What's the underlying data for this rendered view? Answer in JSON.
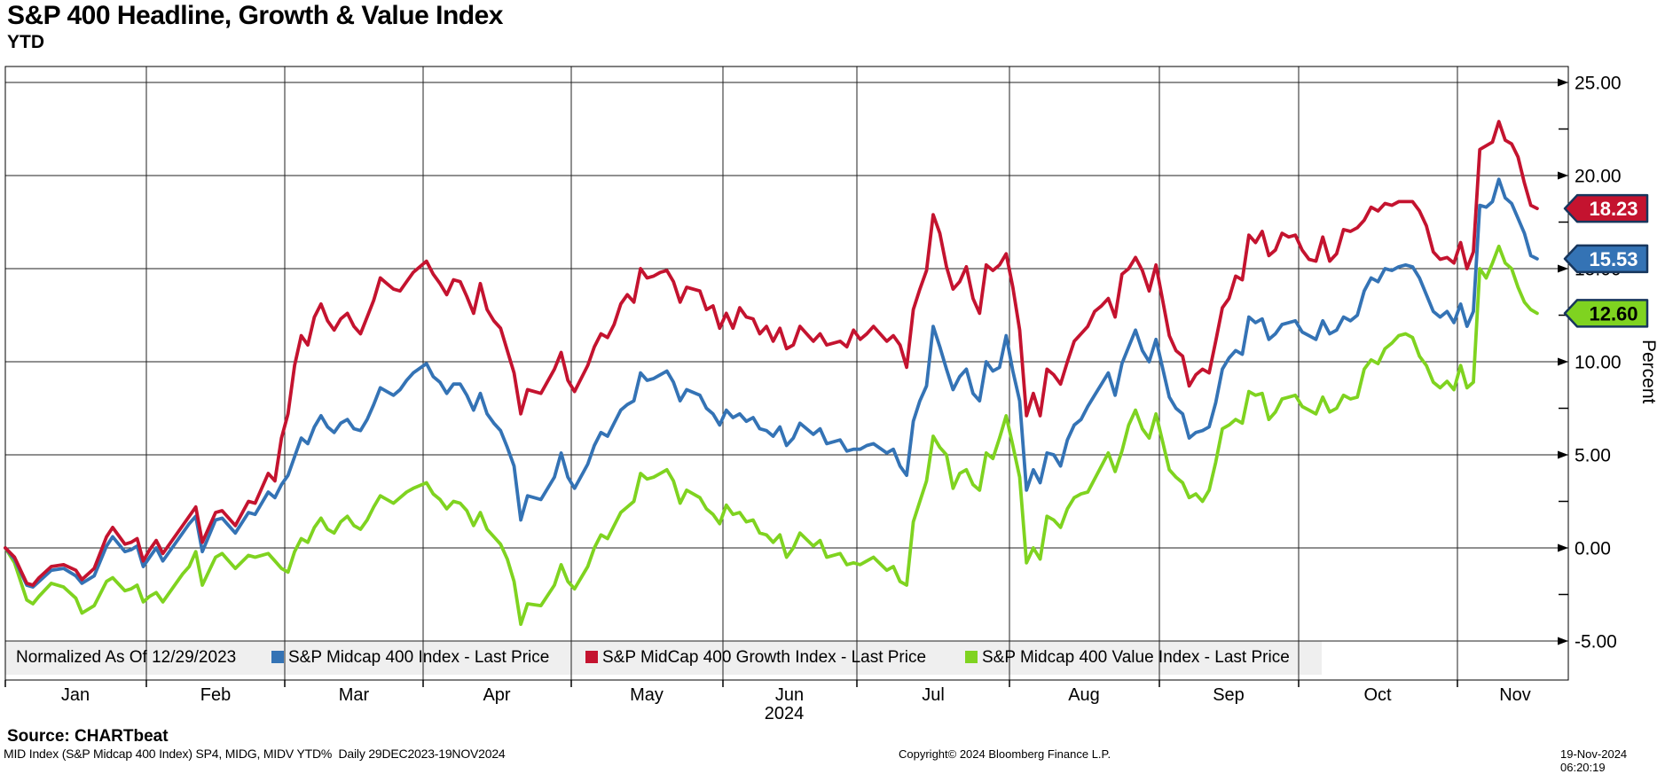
{
  "header": {
    "title": "S&P 400 Headline, Growth & Value Index",
    "subtitle": "YTD"
  },
  "footer": {
    "source": "Source: CHARTbeat",
    "meta": "MID Index (S&P Midcap 400 Index) SP4, MIDG, MIDV YTD%  Daily 29DEC2023-19NOV2024",
    "copyright": "Copyright© 2024 Bloomberg Finance L.P.",
    "timestamp": "19-Nov-2024 06:20:19"
  },
  "chart_data": {
    "type": "line",
    "title": "S&P 400 Headline, Growth & Value Index",
    "subtitle": "YTD",
    "legend_note": "Normalized As Of 12/29/2023",
    "legend_position": "bottom-inside",
    "grid": true,
    "x_axis": {
      "months": [
        "Jan",
        "Feb",
        "Mar",
        "Apr",
        "May",
        "Jun",
        "Jul",
        "Aug",
        "Sep",
        "Oct",
        "Nov"
      ],
      "year_label": "2024",
      "start_date": "2023-12-29",
      "end_date": "2024-11-19"
    },
    "y_axis": {
      "label": "Percent",
      "side": "right",
      "tick_labels": [
        "25.00",
        "20.00",
        "15.00",
        "10.00",
        "5.00",
        "0.00",
        "-5.00"
      ],
      "tick_values": [
        25,
        20,
        15,
        10,
        5,
        0,
        -5
      ],
      "ylim": [
        -7.2,
        25.9
      ]
    },
    "dates": [
      "2023-12-29",
      "2024-01-02",
      "2024-01-04",
      "2024-01-05",
      "2024-01-08",
      "2024-01-10",
      "2024-01-12",
      "2024-01-16",
      "2024-01-17",
      "2024-01-19",
      "2024-01-23",
      "2024-01-24",
      "2024-01-26",
      "2024-01-29",
      "2024-01-30",
      "2024-01-31",
      "2024-02-01",
      "2024-02-02",
      "2024-02-05",
      "2024-02-08",
      "2024-02-09",
      "2024-02-12",
      "2024-02-13",
      "2024-02-15",
      "2024-02-16",
      "2024-02-20",
      "2024-02-22",
      "2024-02-23",
      "2024-02-27",
      "2024-02-28",
      "2024-02-29",
      "2024-03-01",
      "2024-03-04",
      "2024-03-05",
      "2024-03-06",
      "2024-03-07",
      "2024-03-08",
      "2024-03-11",
      "2024-03-12",
      "2024-03-13",
      "2024-03-14",
      "2024-03-15",
      "2024-03-18",
      "2024-03-19",
      "2024-03-20",
      "2024-03-21",
      "2024-03-22",
      "2024-03-25",
      "2024-03-26",
      "2024-03-27",
      "2024-03-28",
      "2024-04-01",
      "2024-04-02",
      "2024-04-03",
      "2024-04-04",
      "2024-04-05",
      "2024-04-08",
      "2024-04-09",
      "2024-04-10",
      "2024-04-11",
      "2024-04-12",
      "2024-04-15",
      "2024-04-16",
      "2024-04-17",
      "2024-04-18",
      "2024-04-19",
      "2024-04-22",
      "2024-04-24",
      "2024-04-26",
      "2024-04-29",
      "2024-04-30",
      "2024-05-01",
      "2024-05-03",
      "2024-05-06",
      "2024-05-07",
      "2024-05-08",
      "2024-05-09",
      "2024-05-10",
      "2024-05-13",
      "2024-05-14",
      "2024-05-15",
      "2024-05-16",
      "2024-05-17",
      "2024-05-20",
      "2024-05-21",
      "2024-05-22",
      "2024-05-23",
      "2024-05-24",
      "2024-05-28",
      "2024-05-29",
      "2024-05-30",
      "2024-05-31",
      "2024-06-03",
      "2024-06-04",
      "2024-06-05",
      "2024-06-06",
      "2024-06-07",
      "2024-06-10",
      "2024-06-11",
      "2024-06-12",
      "2024-06-13",
      "2024-06-14",
      "2024-06-17",
      "2024-06-18",
      "2024-06-20",
      "2024-06-21",
      "2024-06-24",
      "2024-06-26",
      "2024-06-27",
      "2024-06-28",
      "2024-07-01",
      "2024-07-02",
      "2024-07-03",
      "2024-07-05",
      "2024-07-08",
      "2024-07-09",
      "2024-07-10",
      "2024-07-11",
      "2024-07-12",
      "2024-07-15",
      "2024-07-16",
      "2024-07-17",
      "2024-07-18",
      "2024-07-19",
      "2024-07-22",
      "2024-07-23",
      "2024-07-24",
      "2024-07-25",
      "2024-07-26",
      "2024-07-29",
      "2024-07-30",
      "2024-07-31",
      "2024-08-01",
      "2024-08-02",
      "2024-08-05",
      "2024-08-06",
      "2024-08-07",
      "2024-08-08",
      "2024-08-09",
      "2024-08-12",
      "2024-08-13",
      "2024-08-14",
      "2024-08-15",
      "2024-08-16",
      "2024-08-19",
      "2024-08-20",
      "2024-08-21",
      "2024-08-22",
      "2024-08-23",
      "2024-08-26",
      "2024-08-27",
      "2024-08-28",
      "2024-08-29",
      "2024-08-30",
      "2024-09-03",
      "2024-09-04",
      "2024-09-05",
      "2024-09-06",
      "2024-09-09",
      "2024-09-10",
      "2024-09-11",
      "2024-09-12",
      "2024-09-13",
      "2024-09-16",
      "2024-09-17",
      "2024-09-18",
      "2024-09-19",
      "2024-09-20",
      "2024-09-23",
      "2024-09-24",
      "2024-09-25",
      "2024-09-26",
      "2024-09-27",
      "2024-09-30",
      "2024-10-01",
      "2024-10-02",
      "2024-10-03",
      "2024-10-04",
      "2024-10-07",
      "2024-10-08",
      "2024-10-09",
      "2024-10-10",
      "2024-10-11",
      "2024-10-14",
      "2024-10-15",
      "2024-10-16",
      "2024-10-17",
      "2024-10-18",
      "2024-10-21",
      "2024-10-22",
      "2024-10-23",
      "2024-10-24",
      "2024-10-25",
      "2024-10-28",
      "2024-10-29",
      "2024-10-30",
      "2024-10-31",
      "2024-11-01",
      "2024-11-04",
      "2024-11-05",
      "2024-11-06",
      "2024-11-07",
      "2024-11-08",
      "2024-11-11",
      "2024-11-12",
      "2024-11-13",
      "2024-11-14",
      "2024-11-15",
      "2024-11-18",
      "2024-11-19"
    ],
    "series": [
      {
        "key": "headline",
        "name": "S&P Midcap 400 Index - Last Price",
        "color": "#3473b5",
        "last_price": "15.53",
        "last_value": 15.53,
        "badge_text_color": "#ffffff",
        "values": [
          0,
          -0.6,
          -2.0,
          -2.1,
          -1.8,
          -1.2,
          -1.1,
          -1.5,
          -1.9,
          -1.5,
          0.1,
          0.6,
          -0.2,
          -0.1,
          0.1,
          -1.0,
          -0.5,
          0.0,
          -0.7,
          0.8,
          1.3,
          1.7,
          -0.2,
          1.5,
          1.6,
          0.8,
          1.9,
          1.8,
          3.0,
          2.7,
          3.4,
          3.9,
          4.9,
          5.9,
          5.6,
          6.5,
          7.1,
          6.5,
          6.2,
          6.7,
          6.9,
          6.4,
          6.3,
          6.9,
          7.7,
          8.6,
          8.4,
          8.2,
          8.5,
          9.0,
          9.4,
          9.9,
          9.2,
          8.9,
          8.3,
          8.8,
          8.8,
          8.2,
          7.4,
          8.3,
          7.2,
          6.7,
          6.3,
          5.4,
          4.4,
          1.5,
          2.8,
          2.6,
          3.8,
          5.1,
          3.8,
          3.2,
          4.5,
          5.5,
          6.2,
          6.0,
          6.7,
          7.4,
          7.7,
          7.9,
          9.4,
          9.0,
          9.1,
          9.3,
          9.5,
          8.9,
          7.9,
          8.5,
          8.2,
          7.5,
          7.2,
          6.6,
          7.4,
          7.0,
          7.2,
          6.8,
          7.0,
          6.4,
          6.3,
          6.0,
          6.5,
          5.5,
          5.9,
          6.7,
          6.1,
          6.4,
          5.6,
          5.8,
          5.2,
          5.3,
          5.3,
          5.5,
          5.6,
          5.1,
          5.3,
          4.4,
          3.9,
          6.8,
          7.9,
          8.7,
          11.9,
          10.8,
          9.6,
          8.5,
          9.2,
          9.6,
          8.3,
          7.9,
          10.0,
          9.5,
          9.7,
          11.4,
          9.5,
          7.9,
          3.1,
          4.2,
          3.5,
          5.1,
          5.0,
          4.4,
          5.8,
          6.6,
          6.9,
          7.6,
          8.2,
          8.8,
          9.4,
          8.2,
          9.9,
          10.8,
          11.7,
          10.6,
          10.0,
          11.2,
          8.1,
          7.5,
          7.2,
          5.9,
          6.2,
          6.3,
          6.5,
          7.8,
          9.6,
          10.2,
          10.6,
          10.4,
          12.4,
          12.1,
          12.3,
          11.2,
          11.5,
          12.0,
          12.1,
          12.2,
          11.6,
          11.4,
          11.2,
          12.2,
          11.5,
          11.7,
          12.4,
          12.2,
          12.5,
          13.8,
          14.5,
          14.3,
          15.0,
          14.9,
          15.1,
          15.2,
          15.1,
          14.5,
          13.6,
          12.7,
          12.4,
          12.7,
          12.1,
          13.1,
          11.9,
          12.7,
          18.4,
          18.3,
          18.6,
          19.8,
          18.8,
          18.5,
          17.7,
          16.9,
          15.7,
          15.53
        ]
      },
      {
        "key": "growth",
        "name": "S&P MidCap 400 Growth Index - Last Price",
        "color": "#c4132f",
        "last_price": "18.23",
        "last_value": 18.23,
        "badge_text_color": "#ffffff",
        "values": [
          0,
          -0.5,
          -1.9,
          -2.0,
          -1.6,
          -1.0,
          -0.9,
          -1.2,
          -1.7,
          -1.1,
          0.6,
          1.1,
          0.2,
          0.3,
          0.5,
          -0.7,
          -0.1,
          0.4,
          -0.3,
          1.2,
          1.7,
          2.2,
          0.3,
          1.9,
          2.0,
          1.2,
          2.5,
          2.4,
          4.0,
          3.6,
          5.9,
          7.2,
          9.8,
          11.4,
          10.9,
          12.4,
          13.1,
          12.2,
          11.7,
          12.3,
          12.6,
          11.9,
          11.5,
          12.4,
          13.3,
          14.5,
          14.2,
          13.9,
          13.8,
          14.3,
          14.8,
          15.4,
          14.7,
          14.2,
          13.6,
          14.4,
          14.3,
          13.5,
          12.6,
          14.2,
          12.8,
          12.2,
          11.8,
          10.6,
          9.4,
          7.2,
          8.5,
          8.3,
          9.6,
          10.5,
          9.0,
          8.4,
          9.8,
          10.8,
          11.5,
          11.3,
          12.0,
          13.1,
          13.6,
          13.2,
          15.0,
          14.5,
          14.6,
          14.8,
          14.9,
          14.3,
          13.2,
          14.0,
          13.8,
          12.8,
          13.0,
          11.8,
          12.6,
          11.8,
          12.9,
          12.4,
          12.3,
          11.5,
          11.9,
          11.1,
          11.8,
          10.7,
          10.9,
          11.9,
          11.1,
          11.5,
          10.9,
          11.1,
          10.8,
          11.7,
          11.2,
          11.5,
          11.9,
          11.1,
          11.4,
          10.9,
          9.7,
          12.8,
          13.9,
          14.9,
          17.9,
          16.9,
          15.1,
          13.9,
          14.3,
          15.1,
          13.4,
          12.6,
          15.2,
          14.9,
          15.2,
          15.8,
          14.0,
          11.7,
          7.1,
          8.3,
          7.1,
          9.6,
          9.3,
          8.8,
          10.0,
          11.1,
          11.5,
          11.9,
          12.7,
          13.0,
          13.4,
          12.4,
          14.7,
          15.0,
          15.6,
          14.9,
          13.8,
          15.2,
          11.4,
          10.6,
          10.3,
          8.7,
          9.3,
          9.6,
          9.4,
          11.1,
          12.9,
          13.4,
          14.6,
          14.4,
          16.8,
          16.4,
          17.0,
          15.7,
          16.0,
          16.9,
          16.7,
          16.8,
          16.0,
          15.5,
          15.4,
          16.7,
          15.4,
          15.8,
          17.1,
          17.0,
          17.2,
          17.6,
          18.3,
          18.1,
          18.5,
          18.4,
          18.6,
          18.6,
          18.6,
          18.1,
          17.3,
          15.9,
          15.5,
          15.6,
          15.3,
          16.4,
          15.0,
          15.9,
          21.4,
          21.6,
          21.8,
          22.9,
          21.9,
          21.7,
          21.0,
          19.6,
          18.4,
          18.23
        ]
      },
      {
        "key": "value",
        "name": "S&P Midcap 400 Value Index - Last Price",
        "color": "#7fd320",
        "last_price": "12.60",
        "last_value": 12.6,
        "badge_text_color": "#000000",
        "values": [
          0,
          -0.8,
          -2.8,
          -3.0,
          -2.6,
          -1.9,
          -2.1,
          -2.7,
          -3.5,
          -3.1,
          -1.8,
          -1.6,
          -2.3,
          -2.2,
          -2.0,
          -2.9,
          -2.6,
          -2.4,
          -2.9,
          -1.4,
          -1.0,
          -0.2,
          -2.0,
          -0.5,
          -0.3,
          -1.1,
          -0.4,
          -0.5,
          -0.3,
          -0.7,
          -1.1,
          -1.3,
          -0.2,
          0.5,
          0.3,
          1.1,
          1.6,
          1.0,
          0.8,
          1.4,
          1.7,
          1.2,
          1.0,
          1.5,
          2.2,
          2.8,
          2.6,
          2.4,
          2.7,
          3.0,
          3.2,
          3.5,
          2.9,
          2.6,
          2.1,
          2.5,
          2.4,
          2.0,
          1.2,
          1.9,
          1.0,
          0.6,
          0.2,
          -0.6,
          -1.8,
          -4.1,
          -3.0,
          -3.1,
          -2.0,
          -0.9,
          -1.8,
          -2.2,
          -1.0,
          0.0,
          0.7,
          0.5,
          1.2,
          1.9,
          2.2,
          2.5,
          4.0,
          3.7,
          3.8,
          4.0,
          4.2,
          3.6,
          2.4,
          3.1,
          2.7,
          2.1,
          1.8,
          1.3,
          2.3,
          1.8,
          1.9,
          1.4,
          1.5,
          0.8,
          0.7,
          0.3,
          0.7,
          -0.5,
          0.0,
          0.8,
          0.1,
          0.4,
          -0.5,
          -0.3,
          -0.9,
          -0.8,
          -0.9,
          -0.7,
          -0.5,
          -1.2,
          -1.0,
          -1.8,
          -2.0,
          1.4,
          2.5,
          3.6,
          6.0,
          5.4,
          5.0,
          3.2,
          4.0,
          4.2,
          3.4,
          3.1,
          5.1,
          4.8,
          5.9,
          7.1,
          5.5,
          3.8,
          -0.8,
          0.0,
          -0.6,
          1.7,
          1.5,
          1.1,
          2.1,
          2.7,
          2.9,
          3.0,
          3.7,
          4.4,
          5.1,
          4.1,
          5.2,
          6.6,
          7.4,
          6.4,
          5.9,
          7.2,
          4.2,
          3.8,
          3.5,
          2.7,
          2.9,
          2.5,
          3.1,
          4.6,
          6.4,
          6.6,
          6.9,
          6.7,
          8.4,
          8.2,
          8.3,
          6.9,
          7.3,
          8.0,
          8.1,
          8.2,
          7.6,
          7.4,
          7.2,
          8.1,
          7.3,
          7.5,
          8.2,
          8.0,
          8.1,
          9.6,
          10.1,
          9.9,
          10.7,
          11.0,
          11.4,
          11.5,
          11.3,
          10.3,
          9.8,
          8.9,
          8.6,
          8.95,
          8.5,
          9.8,
          8.6,
          8.9,
          15.0,
          14.5,
          15.3,
          16.2,
          15.3,
          15.0,
          14.0,
          13.2,
          12.8,
          12.6
        ]
      }
    ]
  }
}
